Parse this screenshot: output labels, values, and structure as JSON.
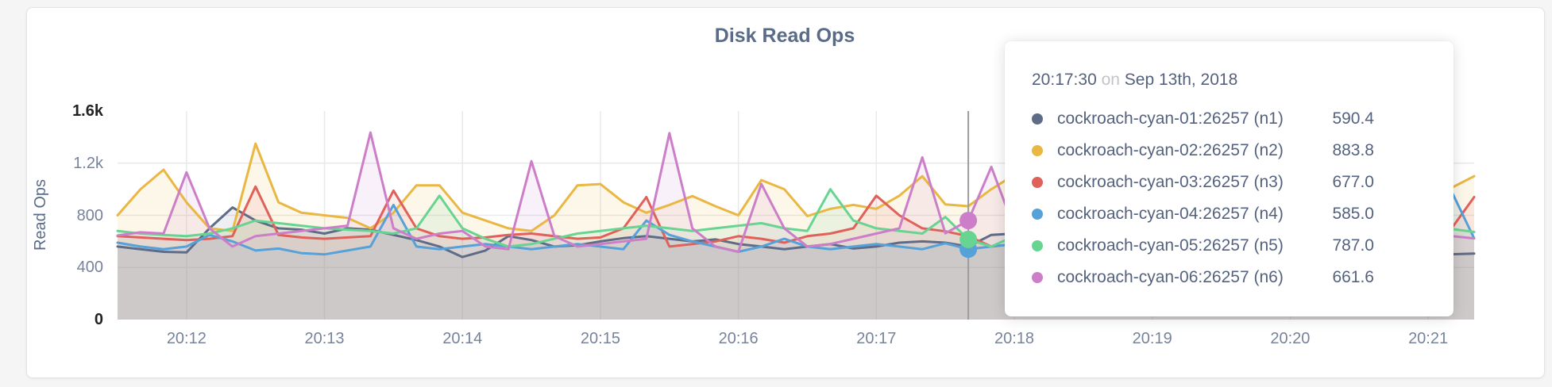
{
  "theme": {
    "page_bg": "#f5f5f6",
    "card_bg": "#ffffff",
    "card_border": "#e3e3e6",
    "grid_color": "#e8e9ea",
    "axis_text": "#76839b",
    "axis_text_strong": "#222222",
    "title_color": "#5a6b87",
    "tooltip_text": "#55627e",
    "tooltip_muted": "#c4c4c8",
    "guideline_color": "#9b9b9b"
  },
  "chart_data": {
    "type": "area",
    "title": "Disk Read Ops",
    "xlabel": "",
    "ylabel": "Read Ops",
    "ylim": [
      0,
      1600
    ],
    "grid": true,
    "legend_position": "tooltip-only",
    "x_start": "20:11:30",
    "x_end": "20:21:20",
    "x_step_seconds": 10,
    "y_ticks": [
      {
        "label": "1.6k",
        "value": 1600,
        "emphasized": true,
        "grid": false
      },
      {
        "label": "1.2k",
        "value": 1200,
        "emphasized": false,
        "grid": true
      },
      {
        "label": "800",
        "value": 800,
        "emphasized": false,
        "grid": true
      },
      {
        "label": "400",
        "value": 400,
        "emphasized": false,
        "grid": true
      },
      {
        "label": "0",
        "value": 0,
        "emphasized": true,
        "grid": false
      }
    ],
    "x_ticks": [
      {
        "label": "20:12",
        "index": 3
      },
      {
        "label": "20:13",
        "index": 9
      },
      {
        "label": "20:14",
        "index": 15
      },
      {
        "label": "20:15",
        "index": 21
      },
      {
        "label": "20:16",
        "index": 27
      },
      {
        "label": "20:17",
        "index": 33
      },
      {
        "label": "20:18",
        "index": 39
      },
      {
        "label": "20:19",
        "index": 45
      },
      {
        "label": "20:20",
        "index": 51
      },
      {
        "label": "20:21",
        "index": 57
      }
    ],
    "series": [
      {
        "key": "n1",
        "name": "cockroach-cyan-01:26257 (n1)",
        "color": "#5f6c87",
        "values": [
          560,
          540,
          520,
          515,
          700,
          860,
          760,
          700,
          690,
          660,
          700,
          690,
          650,
          610,
          560,
          480,
          530,
          640,
          610,
          560,
          570,
          600,
          625,
          640,
          620,
          600,
          615,
          580,
          560,
          540,
          560,
          580,
          545,
          560,
          590,
          600,
          590.4,
          560,
          650,
          660,
          620,
          600,
          585,
          570,
          560,
          575,
          590,
          580,
          570,
          560,
          550,
          560,
          575,
          540,
          520,
          545,
          565,
          540,
          501,
          507
        ]
      },
      {
        "key": "n2",
        "name": "cockroach-cyan-02:26257 (n2)",
        "color": "#e9b742",
        "values": [
          800,
          1000,
          1150,
          900,
          700,
          680,
          1350,
          900,
          820,
          800,
          780,
          700,
          820,
          1030,
          1030,
          820,
          760,
          700,
          680,
          800,
          1030,
          1040,
          900,
          820,
          880,
          947,
          870,
          800,
          1070,
          1000,
          794,
          850,
          880,
          850,
          950,
          1100,
          883.8,
          870,
          1000,
          1110,
          900,
          820,
          850,
          900,
          870,
          840,
          860,
          880,
          900,
          870,
          850,
          880,
          920,
          890,
          860,
          900,
          950,
          900,
          1010,
          1100
        ]
      },
      {
        "key": "n3",
        "name": "cockroach-cyan-03:26257 (n3)",
        "color": "#e0615a",
        "values": [
          640,
          630,
          620,
          610,
          620,
          640,
          1020,
          650,
          630,
          620,
          630,
          640,
          990,
          700,
          640,
          620,
          630,
          650,
          660,
          640,
          620,
          630,
          700,
          940,
          560,
          580,
          600,
          640,
          620,
          590,
          640,
          660,
          700,
          950,
          800,
          700,
          677,
          640,
          560,
          580,
          620,
          640,
          660,
          640,
          620,
          640,
          660,
          650,
          640,
          630,
          650,
          660,
          640,
          630,
          620,
          640,
          660,
          680,
          696,
          940
        ]
      },
      {
        "key": "n4",
        "name": "cockroach-cyan-04:26257 (n4)",
        "color": "#57a1d9",
        "values": [
          590,
          560,
          540,
          560,
          650,
          600,
          530,
          545,
          510,
          500,
          530,
          560,
          880,
          560,
          540,
          560,
          580,
          560,
          540,
          560,
          580,
          560,
          540,
          760,
          650,
          600,
          560,
          520,
          560,
          620,
          560,
          540,
          560,
          580,
          560,
          540,
          585,
          540,
          560,
          580,
          560,
          540,
          530,
          545,
          560,
          550,
          540,
          560,
          555,
          560,
          540,
          530,
          550,
          560,
          540,
          560,
          580,
          600,
          990,
          623
        ]
      },
      {
        "key": "n5",
        "name": "cockroach-cyan-05:26257 (n5)",
        "color": "#68d492",
        "values": [
          680,
          660,
          650,
          640,
          660,
          700,
          760,
          740,
          720,
          700,
          690,
          680,
          660,
          700,
          950,
          700,
          620,
          560,
          580,
          620,
          660,
          680,
          700,
          720,
          700,
          680,
          700,
          720,
          740,
          700,
          680,
          1000,
          760,
          700,
          680,
          660,
          787,
          615,
          560,
          640,
          960,
          800,
          700,
          680,
          660,
          650,
          660,
          670,
          660,
          650,
          660,
          670,
          660,
          650,
          640,
          660,
          680,
          700,
          696,
          672
        ]
      },
      {
        "key": "n6",
        "name": "cockroach-cyan-06:26257 (n6)",
        "color": "#cc7ec8",
        "values": [
          645,
          670,
          660,
          1130,
          700,
          560,
          640,
          660,
          680,
          700,
          720,
          1435,
          700,
          620,
          660,
          680,
          560,
          540,
          1215,
          640,
          560,
          580,
          600,
          620,
          1430,
          700,
          560,
          520,
          1040,
          700,
          560,
          580,
          620,
          660,
          700,
          1245,
          661.6,
          760,
          1172,
          700,
          620,
          600,
          620,
          640,
          660,
          650,
          640,
          660,
          650,
          640,
          660,
          670,
          660,
          650,
          640,
          660,
          680,
          700,
          641,
          623
        ]
      }
    ],
    "hover": {
      "guideline_index": 37,
      "guideline_time": "20:17:40",
      "dot_series": [
        "n4",
        "n5",
        "n6"
      ],
      "dot_radius": 11
    }
  },
  "tooltip": {
    "time": "20:17:30",
    "on_word": "on",
    "date": "Sep 13th, 2018",
    "rows": [
      {
        "series": "n1",
        "label": "cockroach-cyan-01:26257 (n1)",
        "value": "590.4"
      },
      {
        "series": "n2",
        "label": "cockroach-cyan-02:26257 (n2)",
        "value": "883.8"
      },
      {
        "series": "n3",
        "label": "cockroach-cyan-03:26257 (n3)",
        "value": "677.0"
      },
      {
        "series": "n4",
        "label": "cockroach-cyan-04:26257 (n4)",
        "value": "585.0"
      },
      {
        "series": "n5",
        "label": "cockroach-cyan-05:26257 (n5)",
        "value": "787.0"
      },
      {
        "series": "n6",
        "label": "cockroach-cyan-06:26257 (n6)",
        "value": "661.6"
      }
    ]
  }
}
